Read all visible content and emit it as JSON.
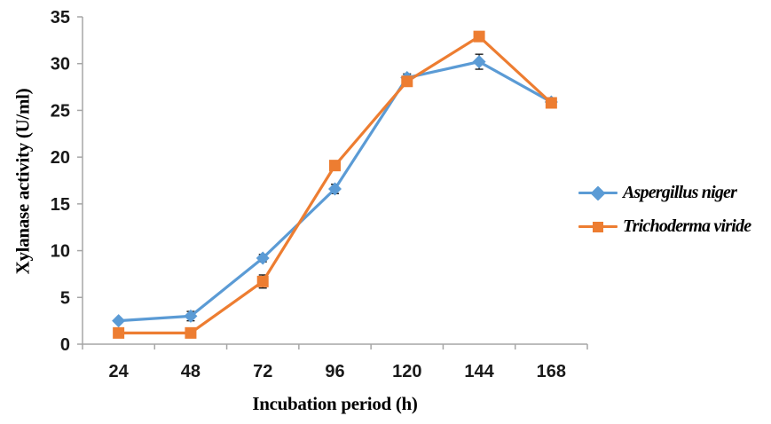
{
  "chart_data": {
    "type": "line",
    "title": "",
    "xlabel": "Incubation period (h)",
    "ylabel": "Xylanase activity (U/ml)",
    "categories": [
      "24",
      "48",
      "72",
      "96",
      "120",
      "144",
      "168"
    ],
    "series": [
      {
        "name": "Aspergillus niger",
        "color": "#5B9BD5",
        "marker": "diamond",
        "values": [
          2.5,
          3.0,
          9.2,
          16.6,
          28.5,
          30.2,
          25.9
        ],
        "error": [
          0.2,
          0.5,
          0.4,
          0.5,
          0.4,
          0.8,
          0.3
        ]
      },
      {
        "name": "Trichoderma viride",
        "color": "#ED7D31",
        "marker": "square",
        "values": [
          1.2,
          1.2,
          6.7,
          19.1,
          28.1,
          32.9,
          25.8
        ],
        "error": [
          0.15,
          0.15,
          0.7,
          0.5,
          0.3,
          0.25,
          0.25
        ]
      }
    ],
    "ylim": [
      0,
      35
    ],
    "ytick_step": 5,
    "grid": false,
    "legend_position": "right",
    "axis_color": "#A6A6A6",
    "tick_label_color": "#1a1a1a",
    "error_bar_color": "#1a1a1a"
  }
}
